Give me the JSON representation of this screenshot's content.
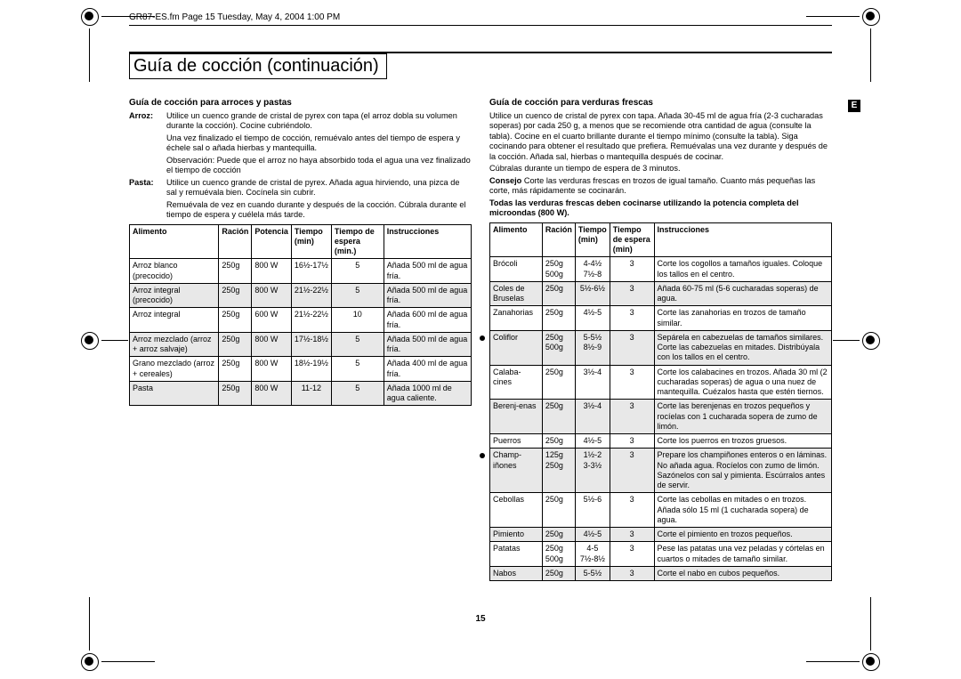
{
  "header": "GR87-ES.fm  Page 15  Tuesday, May 4, 2004  1:00 PM",
  "title": "Guía de cocción (continuación)",
  "pageNumber": "15",
  "eBadge": "E",
  "left": {
    "secTitle": "Guía de cocción para arroces y pastas",
    "arrozLabel": "Arroz:",
    "arrozBody": "Utilice un cuenco grande de cristal de pyrex con tapa (el arroz dobla su volumen durante la cocción). Cocine cubriéndolo.",
    "arrozBody2": "Una vez finalizado el tiempo de cocción, remuévalo antes del tiempo de espera y échele sal o añada hierbas y mantequilla.",
    "arrozBody3": "Observación: Puede que el arroz no haya absorbido toda el agua una vez finalizado el tiempo de cocción",
    "pastaLabel": "Pasta:",
    "pastaBody": "Utilice un cuenco grande de cristal de pyrex. Añada agua hirviendo, una pizca de sal y remuévala bien. Cocínela sin cubrir.",
    "pastaBody2": "Remuévala de vez en cuando durante y después de la cocción. Cúbrala durante el tiempo de espera y cuélela más tarde.",
    "headers": [
      "Alimento",
      "Ración",
      "Potencia",
      "Tiempo (min)",
      "Tiempo de espera (min.)",
      "Instrucciones"
    ],
    "rows": [
      {
        "alt": false,
        "c": [
          "Arroz blanco (precocido)",
          "250g",
          "800 W",
          "16½-17½",
          "5",
          "Añada 500 ml de agua fría."
        ]
      },
      {
        "alt": true,
        "c": [
          "Arroz integral (precocido)",
          "250g",
          "800 W",
          "21½-22½",
          "5",
          "Añada 500 ml de agua fría."
        ]
      },
      {
        "alt": false,
        "c": [
          "Arroz integral",
          "250g",
          "600 W",
          "21½-22½",
          "10",
          "Añada 600 ml de agua fría."
        ]
      },
      {
        "alt": true,
        "c": [
          "Arroz mezclado (arroz + arroz salvaje)",
          "250g",
          "800 W",
          "17½-18½",
          "5",
          "Añada 500 ml de agua fría."
        ]
      },
      {
        "alt": false,
        "c": [
          "Grano mezclado (arroz + cereales)",
          "250g",
          "800 W",
          "18½-19½",
          "5",
          "Añada 400 ml de agua fría."
        ]
      },
      {
        "alt": true,
        "c": [
          "Pasta",
          "250g",
          "800 W",
          "11-12",
          "5",
          "Añada 1000 ml de agua caliente."
        ]
      }
    ]
  },
  "right": {
    "secTitle": "Guía de cocción para verduras frescas",
    "p1": "Utilice un cuenco de cristal de pyrex con tapa. Añada 30-45 ml de agua fría (2-3 cucharadas soperas) por cada 250 g, a menos que se recomiende otra cantidad de agua (consulte la tabla). Cocine en el cuarto brillante durante el tiempo mínimo (consulte la tabla). Siga cocinando para obtener el resultado que prefiera. Remuévalas una vez durante y después de la cocción. Añada sal, hierbas o mantequilla después de cocinar.",
    "p2": "Cúbralas durante un tiempo de espera de 3 minutos.",
    "consejoLabel": "Consejo",
    "consejoBody": "Corte las verduras frescas en trozos de igual tamaño. Cuanto más pequeñas las corte, más rápidamente se cocinarán.",
    "note": "Todas las verduras frescas deben cocinarse utilizando la potencia completa del microondas (800 W).",
    "headers": [
      "Alimento",
      "Ración",
      "Tiempo (min)",
      "Tiempo de espera (min)",
      "Instrucciones"
    ],
    "rows": [
      {
        "alt": false,
        "bullet": false,
        "c": [
          "Brócoli",
          "250g\n500g",
          "4-4½\n7½-8",
          "3",
          "Corte los cogollos a tamaños iguales. Coloque los tallos en el centro."
        ]
      },
      {
        "alt": true,
        "bullet": false,
        "c": [
          "Coles de Bruselas",
          "250g",
          "5½-6½",
          "3",
          "Añada 60-75 ml (5-6 cucharadas soperas) de agua."
        ]
      },
      {
        "alt": false,
        "bullet": false,
        "c": [
          "Zanahorias",
          "250g",
          "4½-5",
          "3",
          "Corte las zanahorias en trozos de tamaño similar."
        ]
      },
      {
        "alt": true,
        "bullet": true,
        "c": [
          "Coliflor",
          "250g\n500g",
          "5-5½\n8½-9",
          "3",
          "Sepárela en cabezuelas de tamaños similares. Corte las cabezuelas en mitades. Distribúyala con los tallos en el centro."
        ]
      },
      {
        "alt": false,
        "bullet": false,
        "c": [
          "Calaba-cines",
          "250g",
          "3½-4",
          "3",
          "Corte los calabacines en trozos. Añada 30 ml (2 cucharadas soperas) de agua o una nuez de mantequilla. Cuézalos hasta que estén tiernos."
        ]
      },
      {
        "alt": true,
        "bullet": false,
        "c": [
          "Berenj-enas",
          "250g",
          "3½-4",
          "3",
          "Corte las berenjenas en trozos pequeños y rocíelas con 1 cucharada sopera de zumo de limón."
        ]
      },
      {
        "alt": false,
        "bullet": false,
        "c": [
          "Puerros",
          "250g",
          "4½-5",
          "3",
          "Corte los puerros en trozos gruesos."
        ]
      },
      {
        "alt": true,
        "bullet": true,
        "c": [
          "Champ-iñones",
          "125g\n250g",
          "1½-2\n3-3½",
          "3",
          "Prepare los champiñones enteros o en láminas. No añada agua. Rocíelos con zumo de limón. Sazónelos con sal y pimienta. Escúrralos antes de servir."
        ]
      },
      {
        "alt": false,
        "bullet": false,
        "c": [
          "Cebollas",
          "250g",
          "5½-6",
          "3",
          "Corte las cebollas en mitades o en trozos. Añada sólo 15 ml (1 cucharada sopera) de agua."
        ]
      },
      {
        "alt": true,
        "bullet": false,
        "c": [
          "Pimiento",
          "250g",
          "4½-5",
          "3",
          "Corte el pimiento en trozos pequeños."
        ]
      },
      {
        "alt": false,
        "bullet": false,
        "c": [
          "Patatas",
          "250g\n500g",
          "4-5\n7½-8½",
          "3",
          "Pese las patatas una vez peladas y córtelas en cuartos o mitades de tamaño similar."
        ]
      },
      {
        "alt": true,
        "bullet": false,
        "c": [
          "Nabos",
          "250g",
          "5-5½",
          "3",
          "Corte el nabo en cubos pequeños."
        ]
      }
    ]
  }
}
